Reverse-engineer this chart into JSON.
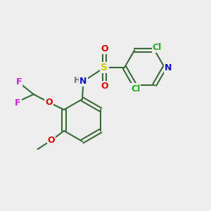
{
  "background_color": "#eeeeee",
  "bond_color": "#3a6b3a",
  "atom_colors": {
    "N": "#1010cc",
    "O": "#dd0000",
    "S": "#cccc00",
    "Cl": "#22aa22",
    "F": "#cc22cc",
    "H": "#667788",
    "C": "#3a6b3a"
  },
  "figsize": [
    3.0,
    3.0
  ],
  "dpi": 100
}
